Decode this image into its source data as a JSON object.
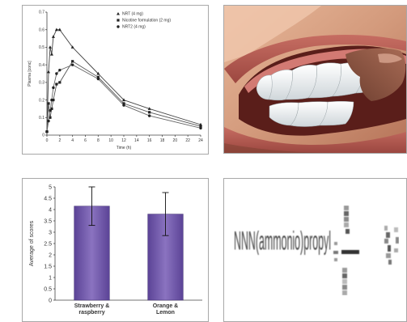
{
  "panels": {
    "top_left_label": "pharmacokinetics-line-chart",
    "top_right_label": "mouth-illustration",
    "bottom_left_label": "bar-chart",
    "bottom_right_label": "pixelated-chemical-structure"
  },
  "chart_data": [
    {
      "type": "line",
      "title": "",
      "xlabel": "Time (h)",
      "ylabel": "Plasma [conc]",
      "xlim": [
        0,
        24
      ],
      "ylim": [
        0,
        0.7
      ],
      "xticks": [
        "0",
        "2",
        "4",
        "6",
        "8",
        "10",
        "12",
        "14",
        "16",
        "18",
        "20",
        "22",
        "24"
      ],
      "yticks": [
        "0",
        "0.1",
        "0.2",
        "0.3",
        "0.4",
        "0.5",
        "0.6",
        "0.7"
      ],
      "series": [
        {
          "name": "NRT (4 mg)",
          "marker": "triangle",
          "x": [
            0,
            0.25,
            0.5,
            0.75,
            1,
            1.5,
            2,
            4,
            8,
            12,
            16,
            24
          ],
          "y": [
            0.02,
            0.36,
            0.5,
            0.46,
            0.56,
            0.6,
            0.6,
            0.5,
            0.35,
            0.2,
            0.15,
            0.06
          ]
        },
        {
          "name": "Nicotine formulation (2 mg)",
          "marker": "square",
          "x": [
            0,
            0.25,
            0.5,
            0.75,
            1,
            1.5,
            2,
            4,
            8,
            12,
            16,
            24
          ],
          "y": [
            0.02,
            0.18,
            0.1,
            0.15,
            0.2,
            0.29,
            0.3,
            0.42,
            0.33,
            0.18,
            0.13,
            0.05
          ]
        },
        {
          "name": "NRT2 (4 mg)",
          "marker": "circle",
          "x": [
            0,
            0.25,
            0.5,
            0.75,
            1,
            1.5,
            2,
            4,
            8,
            12,
            16,
            24
          ],
          "y": [
            0.02,
            0.08,
            0.14,
            0.2,
            0.27,
            0.35,
            0.37,
            0.4,
            0.32,
            0.17,
            0.11,
            0.04
          ]
        }
      ]
    },
    {
      "type": "bar",
      "title": "",
      "xlabel": "",
      "ylabel": "Average of scores",
      "ylim": [
        0,
        5
      ],
      "yticks": [
        "0",
        "0.5",
        "1",
        "1.5",
        "2",
        "2.5",
        "3",
        "3.5",
        "4",
        "4.5",
        "5"
      ],
      "categories": [
        "Strawberry & raspberry",
        "Orange & Lemon"
      ],
      "category_lines": [
        [
          "Strawberry &",
          "raspberry"
        ],
        [
          "Orange &",
          "Lemon"
        ]
      ],
      "values": [
        4.15,
        3.8
      ],
      "errors": [
        0.85,
        0.95
      ],
      "bar_color": "#5b4396",
      "bar_color_light": "#8a73c0"
    }
  ],
  "pixel_structure_text": "NNN(ammonio)propyl"
}
